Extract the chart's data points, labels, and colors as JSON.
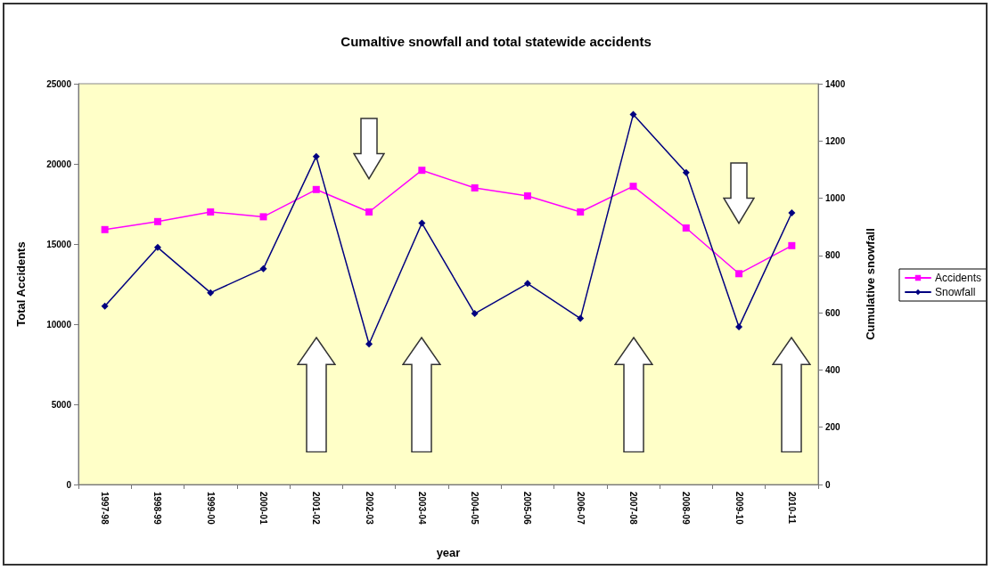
{
  "chart_data": {
    "type": "line",
    "title": "Cumaltive snowfall and total statewide accidents",
    "xlabel": "year",
    "ylabel": "Total Accidents",
    "y2label": "Cumulative snowfall",
    "categories": [
      "1997-98",
      "1998-99",
      "1999-00",
      "2000-01",
      "2001-02",
      "2002-03",
      "2003-04",
      "2004-05",
      "2005-06",
      "2006-07",
      "2007-08",
      "2008-09",
      "2009-10",
      "2010-11"
    ],
    "series": [
      {
        "name": "Accidents",
        "color": "#ff00ff",
        "marker": "square",
        "values": [
          15900,
          16400,
          17000,
          16700,
          18400,
          17000,
          19600,
          18500,
          18000,
          17000,
          18600,
          16000,
          13150,
          14900
        ]
      },
      {
        "name": "Snowfall",
        "color": "#000080",
        "marker": "diamond",
        "axis": "y2",
        "values": [
          623,
          828,
          670,
          754,
          1146,
          491,
          913,
          597,
          702,
          580,
          1293,
          1090,
          551,
          949
        ]
      }
    ],
    "ylim": [
      0,
      25000
    ],
    "yticks": [
      0,
      5000,
      10000,
      15000,
      20000,
      25000
    ],
    "y2lim": [
      0,
      1400
    ],
    "y2ticks": [
      0,
      200,
      400,
      600,
      800,
      1000,
      1200,
      1400
    ],
    "grid": false,
    "legend": "right",
    "line_style": "solid"
  }
}
